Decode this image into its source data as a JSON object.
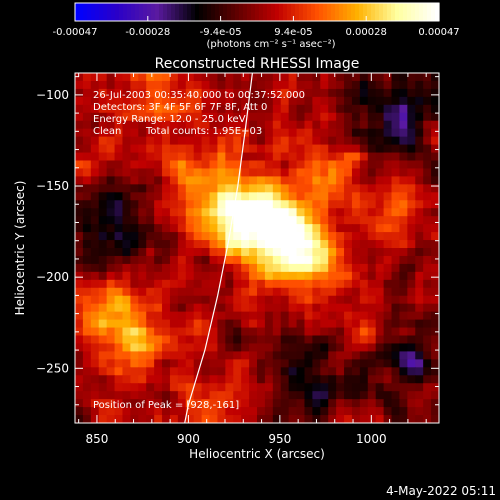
{
  "colorbar": {
    "tick_labels": [
      "-0.00047",
      "-0.00028",
      "-9.4e-05",
      "9.4e-05",
      "0.00028",
      "0.00047"
    ],
    "unit_label": "(photons cm⁻² s⁻¹ asec⁻²)",
    "range": [
      -0.00047,
      0.00047
    ],
    "colors": [
      "#0000ff",
      "#2a00c8",
      "#5a1aa0",
      "#000000",
      "#600000",
      "#c00000",
      "#ff5000",
      "#ffb000",
      "#ffffa0",
      "#ffffff"
    ]
  },
  "chart_data": {
    "type": "heatmap",
    "title": "Reconstructed RHESSI Image",
    "xlabel": "Heliocentric X (arcsec)",
    "ylabel": "Heliocentric Y (arcsec)",
    "xlim": [
      838,
      1037
    ],
    "ylim": [
      -280,
      -88
    ],
    "x_ticks": [
      850,
      900,
      950,
      1000
    ],
    "y_ticks": [
      -100,
      -150,
      -200,
      -250
    ],
    "x_tick_labels": [
      "850",
      "900",
      "950",
      "1000"
    ],
    "y_tick_labels": [
      "−100",
      "−150",
      "−200",
      "−250"
    ],
    "peak": [
      928,
      -161
    ],
    "hotspots": [
      {
        "x": 930,
        "y": -165,
        "amp": 1.0
      },
      {
        "x": 948,
        "y": -178,
        "amp": 0.85
      },
      {
        "x": 966,
        "y": -188,
        "amp": 0.6
      },
      {
        "x": 900,
        "y": -150,
        "amp": 0.45
      },
      {
        "x": 870,
        "y": -235,
        "amp": 0.55
      },
      {
        "x": 855,
        "y": -212,
        "amp": 0.4
      },
      {
        "x": 975,
        "y": -140,
        "amp": 0.35
      },
      {
        "x": 1010,
        "y": -165,
        "amp": 0.3
      },
      {
        "x": 880,
        "y": -105,
        "amp": 0.3
      },
      {
        "x": 1000,
        "y": -230,
        "amp": 0.25
      },
      {
        "x": 920,
        "y": -265,
        "amp": 0.25
      }
    ],
    "coldspots": [
      {
        "x": 860,
        "y": -175,
        "amp": 0.5
      },
      {
        "x": 1010,
        "y": -110,
        "amp": 0.45
      },
      {
        "x": 1020,
        "y": -245,
        "amp": 0.5
      },
      {
        "x": 965,
        "y": -255,
        "amp": 0.35
      }
    ],
    "limb_curve": [
      [
        935,
        -88
      ],
      [
        931,
        -120
      ],
      [
        927,
        -150
      ],
      [
        922,
        -180
      ],
      [
        916,
        -210
      ],
      [
        909,
        -240
      ],
      [
        900,
        -270
      ],
      [
        898,
        -280
      ]
    ],
    "annotations": {
      "line1": "26-Jul-2003 00:35:40.000 to 00:37:52.000",
      "line2": "Detectors: 3F 4F 5F 6F 7F 8F, Att 0",
      "line3": "Energy Range: 12.0 - 25.0 keV",
      "line4a": "Clean",
      "line4b": "Total counts: 1.95E+03",
      "peak_label": "Position of Peak = [928,-161]"
    }
  },
  "footer": {
    "timestamp": "4-May-2022 05:11"
  }
}
